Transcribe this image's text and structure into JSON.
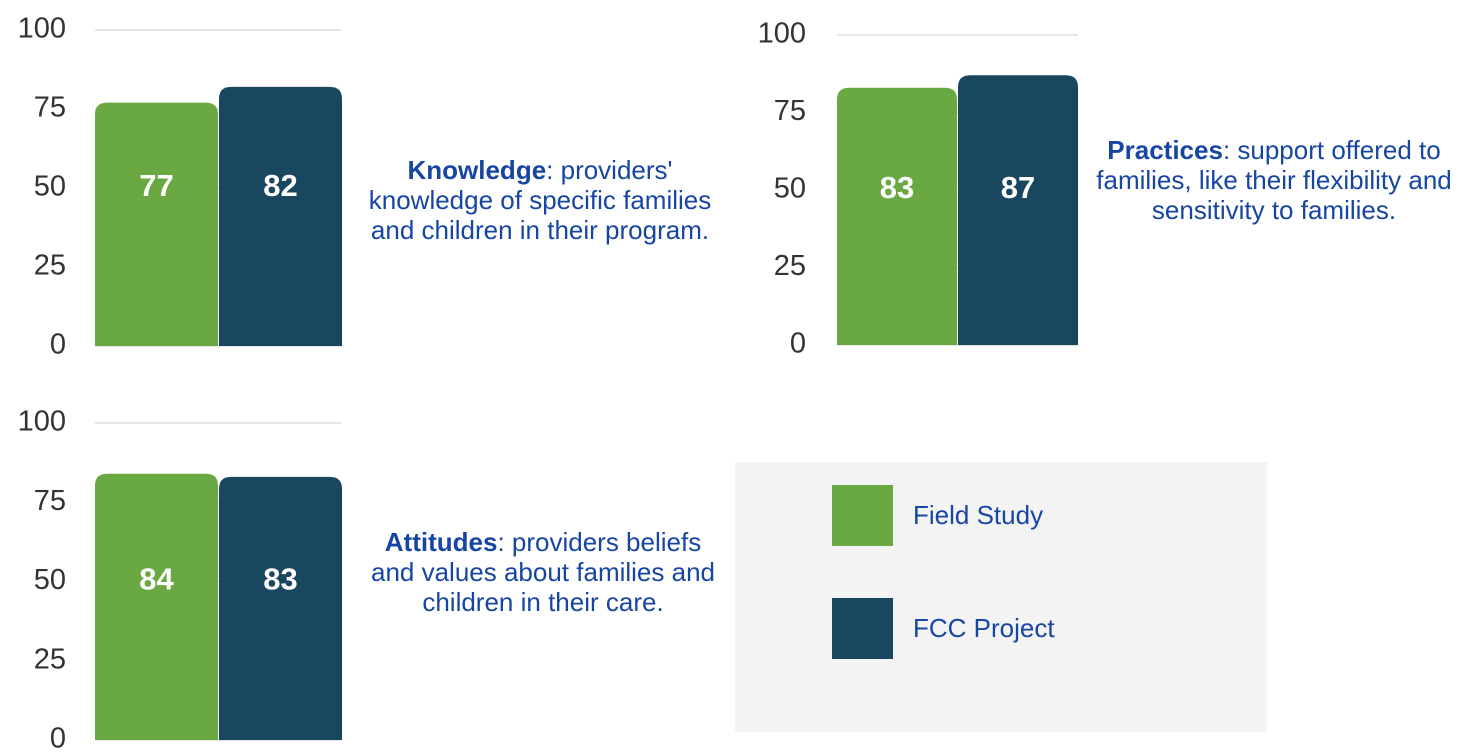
{
  "chart_data": [
    {
      "type": "bar",
      "label": "Knowledge",
      "description": ": providers' knowledge of specific families and children in their program.",
      "values": [
        77,
        82
      ],
      "colors": [
        "#6aa842",
        "#1a4760"
      ],
      "ylim": [
        0,
        100
      ],
      "yticks": [
        0,
        25,
        50,
        75,
        100
      ],
      "grid": true
    },
    {
      "type": "bar",
      "label": "Practices",
      "description": ": support offered to families, like their flexibility and sensitivity to families.",
      "values": [
        83,
        87
      ],
      "colors": [
        "#6aa842",
        "#1a4760"
      ],
      "ylim": [
        0,
        100
      ],
      "yticks": [
        0,
        25,
        50,
        75,
        100
      ],
      "grid": true
    },
    {
      "type": "bar",
      "label": "Attitudes",
      "description": ": providers beliefs and values about families and children in their care.",
      "values": [
        84,
        83
      ],
      "colors": [
        "#6aa842",
        "#1a4760"
      ],
      "ylim": [
        0,
        100
      ],
      "yticks": [
        0,
        25,
        50,
        75,
        100
      ],
      "grid": true
    }
  ],
  "legend": {
    "items": [
      {
        "label": "Field Study",
        "color": "#6aa842"
      },
      {
        "label": "FCC Project",
        "color": "#1a4760"
      }
    ]
  }
}
